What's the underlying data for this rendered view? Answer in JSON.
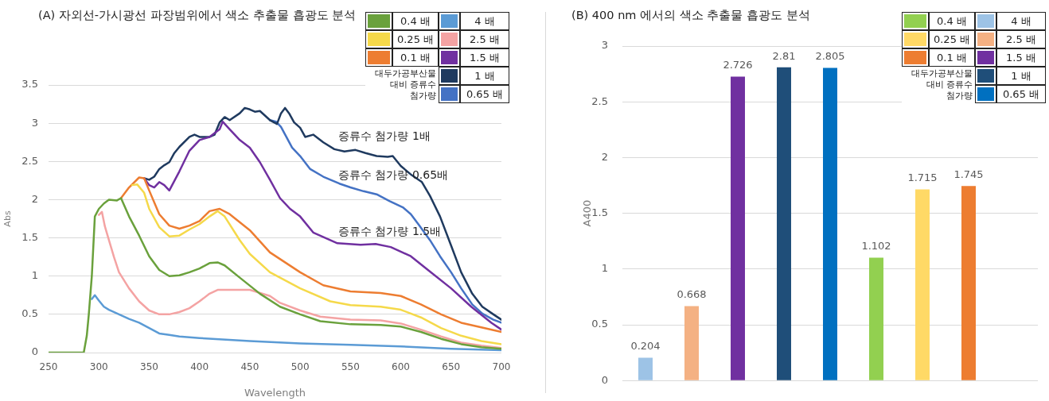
{
  "chart_data": [
    {
      "type": "line",
      "title": "(A) 자외선-가시광선 파장범위에서 색소 추출물 흡광도 분석",
      "xlabel": "Wavelength",
      "ylabel": "Abs",
      "legend_title": "대두가공부산물 대비 증류수 첨가량",
      "legend": "top right",
      "grid": "y",
      "xlim": [
        250,
        700
      ],
      "xticks": [
        250,
        300,
        350,
        400,
        450,
        500,
        550,
        600,
        650,
        700
      ],
      "ylim": [
        0,
        3.5
      ],
      "yticks": [
        0,
        0.5,
        1,
        1.5,
        2,
        2.5,
        3,
        3.5
      ],
      "annotations": [
        "증류수 첨가량 1배",
        "증류수 첨가량 0.65배",
        "증류수 첨가량 1.5배"
      ],
      "series": [
        {
          "name": "0.4 배",
          "color": "#6aa13c",
          "x": [
            250,
            285,
            288,
            290,
            293,
            296,
            300,
            305,
            310,
            318,
            322,
            330,
            340,
            350,
            360,
            370,
            380,
            390,
            400,
            410,
            418,
            425,
            440,
            460,
            480,
            500,
            520,
            550,
            580,
            600,
            620,
            640,
            660,
            680,
            700
          ],
          "values": [
            0,
            0,
            0.22,
            0.5,
            1.0,
            1.78,
            1.88,
            1.95,
            2.0,
            1.99,
            2.02,
            1.78,
            1.53,
            1.26,
            1.08,
            1.0,
            1.01,
            1.05,
            1.1,
            1.17,
            1.18,
            1.14,
            0.98,
            0.77,
            0.6,
            0.5,
            0.41,
            0.37,
            0.36,
            0.34,
            0.27,
            0.18,
            0.11,
            0.07,
            0.05
          ]
        },
        {
          "name": "4 배",
          "color": "#5b9bd5",
          "x": [
            293,
            296,
            300,
            305,
            310,
            320,
            330,
            340,
            350,
            360,
            370,
            380,
            400,
            450,
            500,
            550,
            600,
            650,
            700
          ],
          "values": [
            0.7,
            0.75,
            0.68,
            0.6,
            0.56,
            0.5,
            0.44,
            0.39,
            0.32,
            0.25,
            0.23,
            0.21,
            0.19,
            0.15,
            0.12,
            0.1,
            0.08,
            0.05,
            0.03
          ]
        },
        {
          "name": "0.25 배",
          "color": "#f5d94a",
          "x": [
            333,
            338,
            345,
            350,
            360,
            370,
            380,
            390,
            400,
            410,
            418,
            425,
            440,
            450,
            470,
            500,
            530,
            550,
            580,
            600,
            620,
            640,
            660,
            680,
            700
          ],
          "values": [
            2.19,
            2.2,
            2.09,
            1.88,
            1.64,
            1.52,
            1.53,
            1.61,
            1.68,
            1.78,
            1.85,
            1.78,
            1.47,
            1.29,
            1.05,
            0.84,
            0.67,
            0.62,
            0.6,
            0.56,
            0.46,
            0.32,
            0.22,
            0.15,
            0.11
          ]
        },
        {
          "name": "2.5 배",
          "color": "#f4a3a3",
          "x": [
            300,
            303,
            306,
            310,
            315,
            320,
            330,
            340,
            350,
            360,
            370,
            380,
            390,
            400,
            410,
            418,
            430,
            450,
            470,
            480,
            500,
            520,
            550,
            580,
            600,
            620,
            640,
            660,
            680,
            700
          ],
          "values": [
            1.8,
            1.84,
            1.65,
            1.47,
            1.25,
            1.05,
            0.84,
            0.67,
            0.55,
            0.5,
            0.5,
            0.53,
            0.58,
            0.67,
            0.77,
            0.82,
            0.82,
            0.82,
            0.74,
            0.65,
            0.55,
            0.47,
            0.43,
            0.42,
            0.38,
            0.3,
            0.21,
            0.13,
            0.09,
            0.06
          ]
        },
        {
          "name": "0.1 배",
          "color": "#ed7d31",
          "x": [
            322,
            330,
            340,
            345,
            350,
            360,
            370,
            380,
            390,
            400,
            410,
            420,
            430,
            450,
            470,
            500,
            523,
            550,
            580,
            600,
            620,
            640,
            660,
            680,
            700
          ],
          "values": [
            2.02,
            2.16,
            2.29,
            2.28,
            2.12,
            1.81,
            1.66,
            1.62,
            1.66,
            1.72,
            1.85,
            1.88,
            1.81,
            1.6,
            1.31,
            1.05,
            0.88,
            0.8,
            0.78,
            0.74,
            0.63,
            0.5,
            0.39,
            0.33,
            0.27
          ]
        },
        {
          "name": "1.5 배",
          "color": "#7030a0",
          "x": [
            345,
            350,
            355,
            360,
            365,
            370,
            380,
            390,
            400,
            410,
            420,
            423,
            430,
            440,
            450,
            460,
            470,
            480,
            490,
            500,
            513,
            537,
            560,
            575,
            590,
            610,
            630,
            650,
            670,
            690,
            700
          ],
          "values": [
            2.28,
            2.19,
            2.16,
            2.23,
            2.19,
            2.12,
            2.37,
            2.64,
            2.78,
            2.82,
            2.92,
            3.02,
            2.92,
            2.78,
            2.68,
            2.49,
            2.26,
            2.02,
            1.88,
            1.78,
            1.57,
            1.43,
            1.41,
            1.42,
            1.38,
            1.26,
            1.05,
            0.84,
            0.6,
            0.39,
            0.3
          ]
        },
        {
          "name": "1 배",
          "color": "#1f3a5f",
          "x": [
            345,
            350,
            355,
            360,
            365,
            370,
            375,
            380,
            390,
            395,
            400,
            410,
            415,
            420,
            425,
            430,
            440,
            445,
            450,
            455,
            460,
            470,
            477,
            481,
            485,
            489,
            494,
            500,
            505,
            513,
            523,
            534,
            544,
            555,
            565,
            576,
            587,
            592,
            600,
            610,
            621,
            629,
            639,
            650,
            660,
            671,
            681,
            692,
            700
          ],
          "values": [
            2.28,
            2.26,
            2.3,
            2.4,
            2.45,
            2.49,
            2.61,
            2.69,
            2.82,
            2.85,
            2.82,
            2.82,
            2.85,
            3.01,
            3.08,
            3.04,
            3.13,
            3.2,
            3.18,
            3.15,
            3.16,
            3.04,
            2.99,
            3.13,
            3.2,
            3.13,
            3.01,
            2.94,
            2.82,
            2.85,
            2.75,
            2.66,
            2.63,
            2.65,
            2.61,
            2.57,
            2.56,
            2.57,
            2.44,
            2.33,
            2.23,
            2.05,
            1.78,
            1.4,
            1.05,
            0.77,
            0.6,
            0.5,
            0.43
          ]
        },
        {
          "name": "0.65 배",
          "color": "#4472c4",
          "x": [
            470,
            476,
            481,
            492,
            500,
            510,
            523,
            539,
            550,
            563,
            576,
            589,
            602,
            610,
            618,
            629,
            639,
            650,
            660,
            671,
            681,
            692,
            700
          ],
          "values": [
            3.04,
            3.02,
            2.95,
            2.68,
            2.57,
            2.4,
            2.3,
            2.21,
            2.16,
            2.11,
            2.07,
            1.98,
            1.9,
            1.81,
            1.67,
            1.47,
            1.26,
            1.05,
            0.84,
            0.63,
            0.51,
            0.43,
            0.39
          ]
        }
      ]
    },
    {
      "type": "bar",
      "title": "(B) 400 nm 에서의 색소 추출물 흡광도 분석",
      "ylabel": "A400",
      "legend_title": "대두가공부산물 대비 증류수 첨가량",
      "legend": "top right",
      "grid": "y",
      "data_labels": true,
      "categories": [
        null,
        null,
        null,
        null,
        null,
        null,
        null,
        null,
        null
      ],
      "ylim": [
        0,
        3
      ],
      "yticks": [
        0,
        0.5,
        1,
        1.5,
        2,
        2.5,
        3
      ],
      "series": [
        {
          "name": "0.4 배",
          "color": "#92d050",
          "values": [
            null,
            null,
            null,
            null,
            null,
            1.102,
            null,
            null,
            null
          ]
        },
        {
          "name": "4 배",
          "color": "#9dc3e6",
          "values": [
            0.204,
            null,
            null,
            null,
            null,
            null,
            null,
            null,
            null
          ]
        },
        {
          "name": "0.25 배",
          "color": "#ffd966",
          "values": [
            null,
            null,
            null,
            null,
            null,
            null,
            1.715,
            null,
            null
          ]
        },
        {
          "name": "2.5 배",
          "color": "#f4b183",
          "values": [
            null,
            0.668,
            null,
            null,
            null,
            null,
            null,
            null,
            null
          ]
        },
        {
          "name": "0.1 배",
          "color": "#ed7d31",
          "values": [
            null,
            null,
            null,
            null,
            null,
            null,
            null,
            1.745,
            null
          ]
        },
        {
          "name": "1.5 배",
          "color": "#7030a0",
          "values": [
            null,
            null,
            2.726,
            null,
            null,
            null,
            null,
            null,
            null
          ]
        },
        {
          "name": "1 배",
          "color": "#1f4e79",
          "values": [
            null,
            null,
            null,
            2.81,
            null,
            null,
            null,
            null,
            null
          ]
        },
        {
          "name": "0.65 배",
          "color": "#0070c0",
          "values": [
            null,
            null,
            null,
            null,
            2.805,
            null,
            null,
            null,
            null
          ]
        }
      ]
    }
  ]
}
